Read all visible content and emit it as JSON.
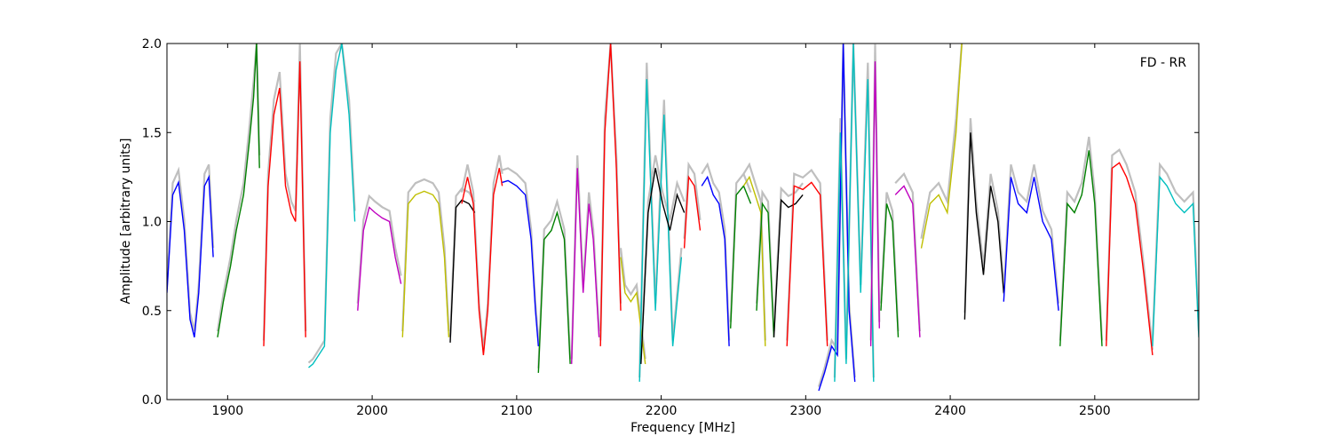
{
  "chart_data": {
    "type": "line",
    "xlabel": "Frequency [MHz]",
    "ylabel": "Amplitude [arbitrary units]",
    "xlim": [
      1858,
      2572
    ],
    "ylim": [
      0.0,
      2.0
    ],
    "xticks": [
      1900,
      2000,
      2100,
      2200,
      2300,
      2400,
      2500
    ],
    "xtick_labels": [
      "1900",
      "2000",
      "2100",
      "2200",
      "2300",
      "2400",
      "2500"
    ],
    "yticks": [
      0.0,
      0.5,
      1.0,
      1.5,
      2.0
    ],
    "ytick_labels": [
      "0.0",
      "0.5",
      "1.0",
      "1.5",
      "2.0"
    ],
    "annotation": "FD - RR",
    "grid": false,
    "colors": {
      "background_trace": "#bfbfbf",
      "cycle": [
        "#0000ff",
        "#008000",
        "#ff0000",
        "#00bfbf",
        "#bf00bf",
        "#bfbf00",
        "#000000"
      ]
    },
    "series": [
      {
        "color": "#0000ff",
        "x": [
          1858,
          1862,
          1866,
          1870,
          1874,
          1877,
          1880,
          1884,
          1887,
          1890
        ],
        "y": [
          0.6,
          1.15,
          1.22,
          0.95,
          0.45,
          0.35,
          0.6,
          1.2,
          1.25,
          0.8
        ]
      },
      {
        "color": "#008000",
        "x": [
          1893,
          1897,
          1902,
          1906,
          1911,
          1915,
          1918,
          1920,
          1922
        ],
        "y": [
          0.35,
          0.55,
          0.75,
          0.95,
          1.15,
          1.45,
          1.7,
          2.0,
          1.3
        ]
      },
      {
        "color": "#ff0000",
        "x": [
          1925,
          1928,
          1932,
          1936,
          1940,
          1944,
          1947,
          1950,
          1954
        ],
        "y": [
          0.3,
          1.2,
          1.6,
          1.75,
          1.2,
          1.05,
          1.0,
          1.9,
          0.35
        ]
      },
      {
        "color": "#00bfbf",
        "x": [
          1956,
          1959,
          1963,
          1967,
          1971,
          1975,
          1979,
          1984,
          1988
        ],
        "y": [
          0.18,
          0.2,
          0.25,
          0.3,
          1.5,
          1.85,
          2.0,
          1.6,
          1.0
        ]
      },
      {
        "color": "#bf00bf",
        "x": [
          1990,
          1994,
          1998,
          2002,
          2007,
          2012,
          2016,
          2020
        ],
        "y": [
          0.5,
          0.95,
          1.08,
          1.05,
          1.02,
          1.0,
          0.8,
          0.65
        ]
      },
      {
        "color": "#bfbf00",
        "x": [
          2021,
          2025,
          2030,
          2036,
          2042,
          2046,
          2050,
          2053
        ],
        "y": [
          0.35,
          1.1,
          1.15,
          1.17,
          1.15,
          1.1,
          0.8,
          0.35
        ]
      },
      {
        "color": "#000000",
        "x": [
          2054,
          2058,
          2062,
          2067,
          2071
        ],
        "y": [
          0.32,
          1.08,
          1.12,
          1.1,
          1.05
        ]
      },
      {
        "color": "#ff0000",
        "x": [
          2062,
          2066,
          2070,
          2074,
          2077,
          2080,
          2084,
          2088,
          2090
        ],
        "y": [
          1.1,
          1.25,
          1.1,
          0.5,
          0.25,
          0.5,
          1.15,
          1.3,
          1.2
        ]
      },
      {
        "color": "#0000ff",
        "x": [
          2090,
          2094,
          2100,
          2106,
          2110,
          2113,
          2115
        ],
        "y": [
          1.22,
          1.23,
          1.2,
          1.15,
          0.9,
          0.5,
          0.3
        ]
      },
      {
        "color": "#008000",
        "x": [
          2115,
          2119,
          2124,
          2128,
          2133,
          2137
        ],
        "y": [
          0.15,
          0.9,
          0.95,
          1.05,
          0.9,
          0.2
        ]
      },
      {
        "color": "#bf00bf",
        "x": [
          2138,
          2142,
          2146,
          2150,
          2153,
          2157
        ],
        "y": [
          0.2,
          1.3,
          0.6,
          1.1,
          0.9,
          0.35
        ]
      },
      {
        "color": "#ff0000",
        "x": [
          2158,
          2161,
          2165,
          2169,
          2172
        ],
        "y": [
          0.3,
          1.5,
          2.0,
          1.3,
          0.5
        ]
      },
      {
        "color": "#bfbf00",
        "x": [
          2172,
          2175,
          2179,
          2183,
          2186,
          2189
        ],
        "y": [
          0.8,
          0.6,
          0.55,
          0.6,
          0.4,
          0.2
        ]
      },
      {
        "color": "#00bfbf",
        "x": [
          2185,
          2190,
          2196,
          2202,
          2208,
          2214
        ],
        "y": [
          0.1,
          1.8,
          0.5,
          1.6,
          0.3,
          0.8
        ]
      },
      {
        "color": "#000000",
        "x": [
          2186,
          2191,
          2196,
          2201,
          2206,
          2211,
          2216
        ],
        "y": [
          0.2,
          1.05,
          1.3,
          1.1,
          0.95,
          1.15,
          1.05
        ]
      },
      {
        "color": "#ff0000",
        "x": [
          2216,
          2219,
          2223,
          2227
        ],
        "y": [
          0.85,
          1.25,
          1.2,
          0.95
        ]
      },
      {
        "color": "#0000ff",
        "x": [
          2228,
          2232,
          2236,
          2240,
          2244,
          2247
        ],
        "y": [
          1.2,
          1.25,
          1.15,
          1.1,
          0.9,
          0.3
        ]
      },
      {
        "color": "#008000",
        "x": [
          2248,
          2252,
          2257,
          2262
        ],
        "y": [
          0.4,
          1.15,
          1.2,
          1.1
        ]
      },
      {
        "color": "#bfbf00",
        "x": [
          2257,
          2261,
          2265,
          2269,
          2272
        ],
        "y": [
          1.2,
          1.25,
          1.15,
          1.05,
          0.3
        ]
      },
      {
        "color": "#008000",
        "x": [
          2266,
          2270,
          2274,
          2278
        ],
        "y": [
          0.5,
          1.1,
          1.05,
          0.35
        ]
      },
      {
        "color": "#000000",
        "x": [
          2278,
          2283,
          2288,
          2293,
          2298
        ],
        "y": [
          0.35,
          1.12,
          1.08,
          1.1,
          1.15
        ]
      },
      {
        "color": "#ff0000",
        "x": [
          2287,
          2292,
          2298,
          2304,
          2310,
          2315
        ],
        "y": [
          0.3,
          1.2,
          1.18,
          1.22,
          1.15,
          0.3
        ]
      },
      {
        "color": "#0000ff",
        "x": [
          2309,
          2313,
          2318,
          2322,
          2326,
          2330,
          2334
        ],
        "y": [
          0.05,
          0.15,
          0.3,
          0.25,
          2.0,
          0.5,
          0.1
        ]
      },
      {
        "color": "#00bfbf",
        "x": [
          2320,
          2324,
          2328,
          2333,
          2338,
          2343,
          2347
        ],
        "y": [
          0.1,
          1.5,
          0.2,
          2.0,
          0.6,
          1.8,
          0.1
        ]
      },
      {
        "color": "#bf00bf",
        "x": [
          2345,
          2348,
          2351
        ],
        "y": [
          0.3,
          1.9,
          0.4
        ]
      },
      {
        "color": "#008000",
        "x": [
          2352,
          2356,
          2360,
          2364
        ],
        "y": [
          0.5,
          1.1,
          1.0,
          0.35
        ]
      },
      {
        "color": "#bf00bf",
        "x": [
          2362,
          2368,
          2374,
          2379
        ],
        "y": [
          1.15,
          1.2,
          1.1,
          0.35
        ]
      },
      {
        "color": "#bfbf00",
        "x": [
          2380,
          2386,
          2392,
          2398,
          2404,
          2408
        ],
        "y": [
          0.85,
          1.1,
          1.15,
          1.05,
          1.5,
          2.0
        ]
      },
      {
        "color": "#000000",
        "x": [
          2410,
          2414,
          2418,
          2423,
          2428,
          2433,
          2437
        ],
        "y": [
          0.45,
          1.5,
          1.05,
          0.7,
          1.2,
          1.0,
          0.6
        ]
      },
      {
        "color": "#0000ff",
        "x": [
          2437,
          2442,
          2447,
          2453,
          2458,
          2464,
          2470,
          2475
        ],
        "y": [
          0.55,
          1.25,
          1.1,
          1.05,
          1.25,
          1.0,
          0.9,
          0.5
        ]
      },
      {
        "color": "#008000",
        "x": [
          2476,
          2481,
          2486,
          2491,
          2496,
          2500,
          2505
        ],
        "y": [
          0.3,
          1.1,
          1.05,
          1.15,
          1.4,
          1.1,
          0.3
        ]
      },
      {
        "color": "#ff0000",
        "x": [
          2508,
          2512,
          2517,
          2522,
          2528,
          2534,
          2540
        ],
        "y": [
          0.3,
          1.3,
          1.33,
          1.25,
          1.1,
          0.7,
          0.25
        ]
      },
      {
        "color": "#00bfbf",
        "x": [
          2540,
          2545,
          2550,
          2556,
          2562,
          2568,
          2572
        ],
        "y": [
          0.3,
          1.25,
          1.2,
          1.1,
          1.05,
          1.1,
          0.35
        ]
      }
    ]
  }
}
